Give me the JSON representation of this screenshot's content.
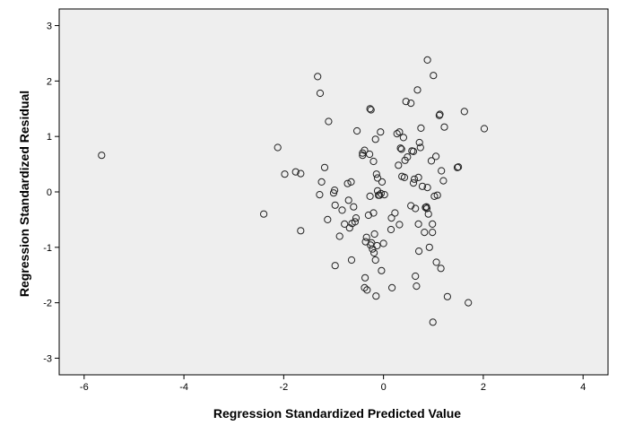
{
  "chart_data": {
    "type": "scatter",
    "title": "",
    "xlabel": "Regression Standardized Predicted Value",
    "ylabel": "Regression Standardized Residual",
    "xlim": [
      -6.5,
      4.5
    ],
    "ylim": [
      -3.3,
      3.3
    ],
    "xticks": [
      -6,
      -4,
      -2,
      0,
      2,
      4
    ],
    "yticks": [
      -3,
      -2,
      -1,
      0,
      1,
      2,
      3
    ],
    "grid": false,
    "legend": "none",
    "colors": {
      "plot_background": "#eeeeee",
      "marker_stroke": "#222222",
      "axes": "#000000"
    },
    "points": [
      [
        -5.65,
        0.66
      ],
      [
        -2.4,
        -0.4
      ],
      [
        -2.12,
        0.8
      ],
      [
        -1.98,
        0.32
      ],
      [
        -1.76,
        0.36
      ],
      [
        -1.66,
        0.33
      ],
      [
        -1.66,
        -0.7
      ],
      [
        -1.32,
        2.08
      ],
      [
        -1.27,
        1.78
      ],
      [
        -1.28,
        -0.05
      ],
      [
        -1.24,
        0.18
      ],
      [
        -1.18,
        0.44
      ],
      [
        -1.1,
        1.27
      ],
      [
        -1.12,
        -0.5
      ],
      [
        -1.0,
        -0.02
      ],
      [
        -0.98,
        0.03
      ],
      [
        -0.97,
        -0.24
      ],
      [
        -0.97,
        -1.33
      ],
      [
        -0.88,
        -0.8
      ],
      [
        -0.83,
        -0.33
      ],
      [
        -0.78,
        -0.58
      ],
      [
        -0.72,
        0.15
      ],
      [
        -0.7,
        -0.15
      ],
      [
        -0.68,
        -0.65
      ],
      [
        -0.65,
        0.18
      ],
      [
        -0.64,
        -1.23
      ],
      [
        -0.63,
        -0.57
      ],
      [
        -0.6,
        -0.27
      ],
      [
        -0.57,
        -0.54
      ],
      [
        -0.55,
        -0.47
      ],
      [
        -0.53,
        1.1
      ],
      [
        -0.42,
        0.66
      ],
      [
        -0.42,
        0.7
      ],
      [
        -0.38,
        0.75
      ],
      [
        -0.37,
        -1.55
      ],
      [
        -0.38,
        -1.73
      ],
      [
        -0.36,
        -0.9
      ],
      [
        -0.34,
        -0.82
      ],
      [
        -0.33,
        -1.77
      ],
      [
        -0.3,
        -0.42
      ],
      [
        -0.28,
        0.68
      ],
      [
        -0.27,
        1.5
      ],
      [
        -0.25,
        1.48
      ],
      [
        -0.27,
        -0.08
      ],
      [
        -0.26,
        -0.96
      ],
      [
        -0.24,
        -0.92
      ],
      [
        -0.22,
        -1.03
      ],
      [
        -0.2,
        -0.38
      ],
      [
        -0.19,
        -1.1
      ],
      [
        -0.2,
        0.55
      ],
      [
        -0.18,
        -0.76
      ],
      [
        -0.16,
        0.95
      ],
      [
        -0.16,
        -1.23
      ],
      [
        -0.15,
        -1.88
      ],
      [
        -0.14,
        0.32
      ],
      [
        -0.13,
        -0.97
      ],
      [
        -0.12,
        0.25
      ],
      [
        -0.12,
        0.02
      ],
      [
        -0.1,
        -0.06
      ],
      [
        -0.08,
        -0.06
      ],
      [
        -0.06,
        1.08
      ],
      [
        -0.05,
        -0.03
      ],
      [
        -0.03,
        0.18
      ],
      [
        -0.04,
        -1.42
      ],
      [
        0.0,
        -0.93
      ],
      [
        0.02,
        -0.05
      ],
      [
        0.15,
        -0.68
      ],
      [
        0.16,
        -0.47
      ],
      [
        0.17,
        -1.73
      ],
      [
        0.23,
        -0.38
      ],
      [
        0.27,
        1.05
      ],
      [
        0.3,
        0.48
      ],
      [
        0.32,
        1.08
      ],
      [
        0.32,
        -0.59
      ],
      [
        0.34,
        0.79
      ],
      [
        0.36,
        0.77
      ],
      [
        0.37,
        0.28
      ],
      [
        0.4,
        0.98
      ],
      [
        0.42,
        0.26
      ],
      [
        0.43,
        0.57
      ],
      [
        0.45,
        1.63
      ],
      [
        0.48,
        0.63
      ],
      [
        0.55,
        1.6
      ],
      [
        0.55,
        -0.25
      ],
      [
        0.57,
        0.74
      ],
      [
        0.6,
        0.73
      ],
      [
        0.6,
        0.16
      ],
      [
        0.62,
        0.23
      ],
      [
        0.64,
        -0.3
      ],
      [
        0.64,
        -1.52
      ],
      [
        0.66,
        -1.7
      ],
      [
        0.68,
        1.84
      ],
      [
        0.7,
        0.26
      ],
      [
        0.7,
        -0.58
      ],
      [
        0.71,
        -1.07
      ],
      [
        0.72,
        0.89
      ],
      [
        0.74,
        0.8
      ],
      [
        0.75,
        1.15
      ],
      [
        0.78,
        0.1
      ],
      [
        0.82,
        -0.73
      ],
      [
        0.84,
        -0.28
      ],
      [
        0.86,
        -0.27
      ],
      [
        0.87,
        -0.3
      ],
      [
        0.88,
        2.38
      ],
      [
        0.88,
        0.08
      ],
      [
        0.9,
        -0.4
      ],
      [
        0.92,
        -1.0
      ],
      [
        0.96,
        0.56
      ],
      [
        0.98,
        -0.73
      ],
      [
        0.98,
        -0.58
      ],
      [
        0.99,
        -2.35
      ],
      [
        1.0,
        2.1
      ],
      [
        1.02,
        -0.08
      ],
      [
        1.05,
        0.64
      ],
      [
        1.06,
        -1.27
      ],
      [
        1.08,
        -0.06
      ],
      [
        1.12,
        1.38
      ],
      [
        1.13,
        1.4
      ],
      [
        1.15,
        -1.38
      ],
      [
        1.16,
        0.38
      ],
      [
        1.2,
        0.2
      ],
      [
        1.22,
        1.17
      ],
      [
        1.28,
        -1.89
      ],
      [
        1.48,
        0.44
      ],
      [
        1.5,
        0.45
      ],
      [
        1.62,
        1.45
      ],
      [
        1.7,
        -2.0
      ],
      [
        2.02,
        1.14
      ]
    ]
  }
}
